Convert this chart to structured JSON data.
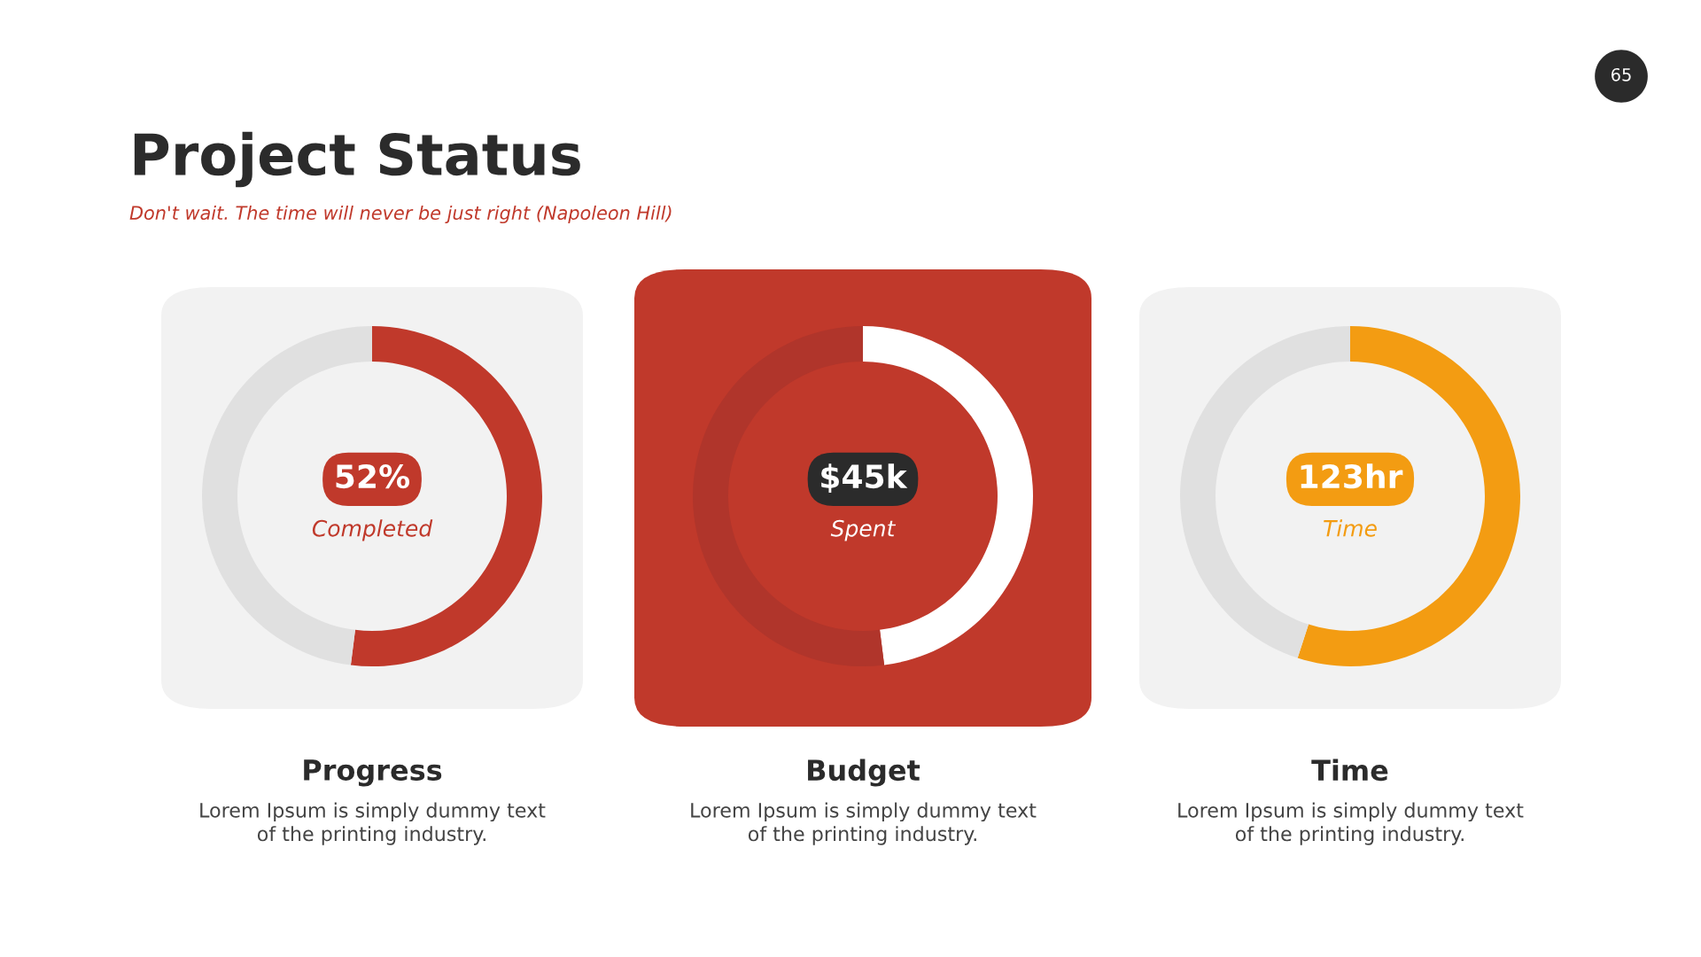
{
  "chart_data": [
    {
      "type": "other",
      "title": "Project Status",
      "subtitle": "Don't wait. The time will never be just right (Napoleon Hill)",
      "annotations": [
        "65"
      ]
    },
    {
      "type": "donut",
      "title": "Progress",
      "categories": [
        null,
        null
      ],
      "values": [
        52,
        48
      ],
      "colors": [
        "#c0392b",
        "#e0e0e0"
      ],
      "annotations": [
        "52%",
        "Completed",
        "Lorem Ipsum is simply dummy text\nof the printing industry."
      ]
    },
    {
      "type": "donut",
      "title": "Budget",
      "categories": [
        null,
        null
      ],
      "values": [
        48,
        52
      ],
      "colors": [
        "#ffffff",
        "#b0352b"
      ],
      "annotations": [
        "$45k",
        "Spent",
        "Lorem Ipsum is simply dummy text\nof the printing industry."
      ]
    },
    {
      "type": "donut",
      "title": "Time",
      "categories": [
        null,
        null
      ],
      "values": [
        55,
        45
      ],
      "colors": [
        "#f39c12",
        "#e0e0e0"
      ],
      "annotations": [
        "123hr",
        "Time",
        "Lorem Ipsum is simply dummy text\nof the printing industry."
      ]
    }
  ]
}
